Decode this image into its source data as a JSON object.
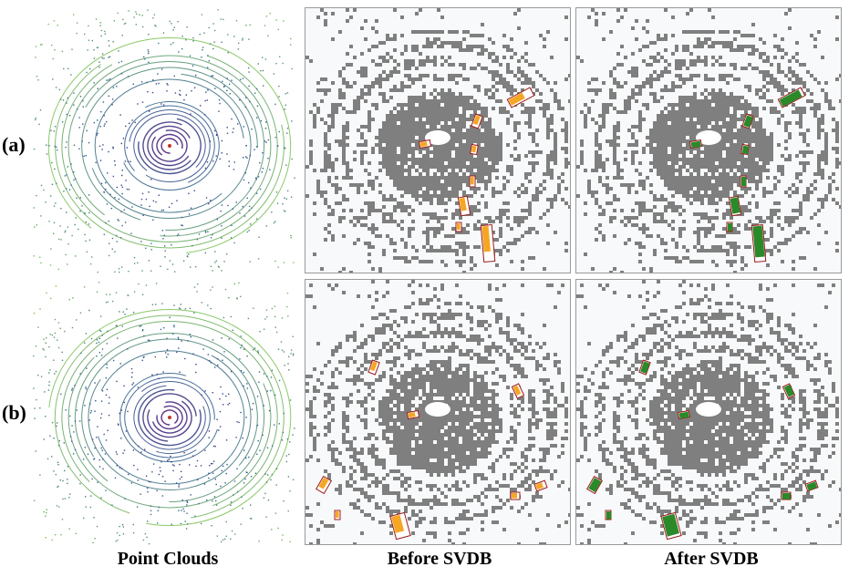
{
  "figure": {
    "row_labels": [
      "(a)",
      "(b)"
    ],
    "column_labels": [
      "Point Clouds",
      "Before SVDB",
      "After SVDB"
    ]
  },
  "colors": {
    "background": "#ffffff",
    "grid_panel": "#f7f9fb",
    "occupied_cell": "#7f7f7f",
    "box_outline": "#9e1b1b",
    "before_fill": "#f5a623",
    "after_fill": "#2a8a2a",
    "ring_inner": "#4b1a7a",
    "ring_mid": "#2f5f8f",
    "ring_outer": "#7fc35a"
  }
}
